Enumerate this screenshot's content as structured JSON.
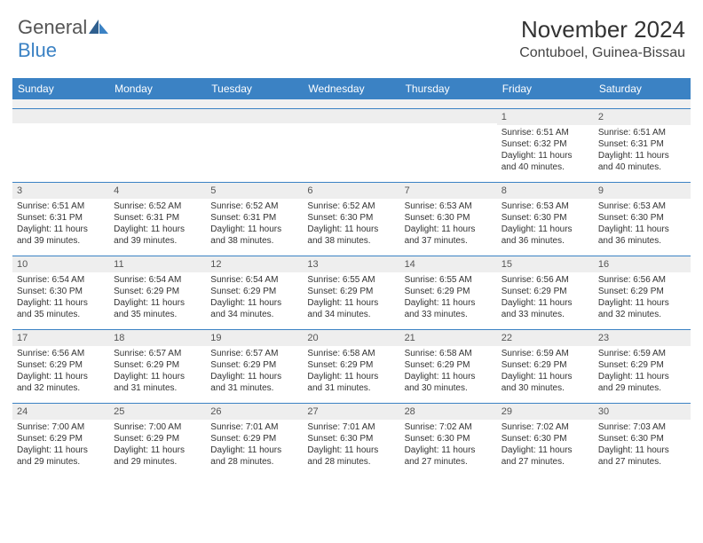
{
  "logo": {
    "text_gray": "General",
    "text_blue": "Blue"
  },
  "header": {
    "title": "November 2024",
    "location": "Contuboel, Guinea-Bissau"
  },
  "colors": {
    "accent": "#3b82c4",
    "dow_bg": "#3b82c4",
    "dow_text": "#ffffff",
    "daynum_bg": "#eeeeee",
    "border": "#3b82c4",
    "body_text": "#333333",
    "title_text": "#333333"
  },
  "days_of_week": [
    "Sunday",
    "Monday",
    "Tuesday",
    "Wednesday",
    "Thursday",
    "Friday",
    "Saturday"
  ],
  "weeks": [
    [
      null,
      null,
      null,
      null,
      null,
      {
        "n": "1",
        "sunrise": "Sunrise: 6:51 AM",
        "sunset": "Sunset: 6:32 PM",
        "daylight": "Daylight: 11 hours and 40 minutes."
      },
      {
        "n": "2",
        "sunrise": "Sunrise: 6:51 AM",
        "sunset": "Sunset: 6:31 PM",
        "daylight": "Daylight: 11 hours and 40 minutes."
      }
    ],
    [
      {
        "n": "3",
        "sunrise": "Sunrise: 6:51 AM",
        "sunset": "Sunset: 6:31 PM",
        "daylight": "Daylight: 11 hours and 39 minutes."
      },
      {
        "n": "4",
        "sunrise": "Sunrise: 6:52 AM",
        "sunset": "Sunset: 6:31 PM",
        "daylight": "Daylight: 11 hours and 39 minutes."
      },
      {
        "n": "5",
        "sunrise": "Sunrise: 6:52 AM",
        "sunset": "Sunset: 6:31 PM",
        "daylight": "Daylight: 11 hours and 38 minutes."
      },
      {
        "n": "6",
        "sunrise": "Sunrise: 6:52 AM",
        "sunset": "Sunset: 6:30 PM",
        "daylight": "Daylight: 11 hours and 38 minutes."
      },
      {
        "n": "7",
        "sunrise": "Sunrise: 6:53 AM",
        "sunset": "Sunset: 6:30 PM",
        "daylight": "Daylight: 11 hours and 37 minutes."
      },
      {
        "n": "8",
        "sunrise": "Sunrise: 6:53 AM",
        "sunset": "Sunset: 6:30 PM",
        "daylight": "Daylight: 11 hours and 36 minutes."
      },
      {
        "n": "9",
        "sunrise": "Sunrise: 6:53 AM",
        "sunset": "Sunset: 6:30 PM",
        "daylight": "Daylight: 11 hours and 36 minutes."
      }
    ],
    [
      {
        "n": "10",
        "sunrise": "Sunrise: 6:54 AM",
        "sunset": "Sunset: 6:30 PM",
        "daylight": "Daylight: 11 hours and 35 minutes."
      },
      {
        "n": "11",
        "sunrise": "Sunrise: 6:54 AM",
        "sunset": "Sunset: 6:29 PM",
        "daylight": "Daylight: 11 hours and 35 minutes."
      },
      {
        "n": "12",
        "sunrise": "Sunrise: 6:54 AM",
        "sunset": "Sunset: 6:29 PM",
        "daylight": "Daylight: 11 hours and 34 minutes."
      },
      {
        "n": "13",
        "sunrise": "Sunrise: 6:55 AM",
        "sunset": "Sunset: 6:29 PM",
        "daylight": "Daylight: 11 hours and 34 minutes."
      },
      {
        "n": "14",
        "sunrise": "Sunrise: 6:55 AM",
        "sunset": "Sunset: 6:29 PM",
        "daylight": "Daylight: 11 hours and 33 minutes."
      },
      {
        "n": "15",
        "sunrise": "Sunrise: 6:56 AM",
        "sunset": "Sunset: 6:29 PM",
        "daylight": "Daylight: 11 hours and 33 minutes."
      },
      {
        "n": "16",
        "sunrise": "Sunrise: 6:56 AM",
        "sunset": "Sunset: 6:29 PM",
        "daylight": "Daylight: 11 hours and 32 minutes."
      }
    ],
    [
      {
        "n": "17",
        "sunrise": "Sunrise: 6:56 AM",
        "sunset": "Sunset: 6:29 PM",
        "daylight": "Daylight: 11 hours and 32 minutes."
      },
      {
        "n": "18",
        "sunrise": "Sunrise: 6:57 AM",
        "sunset": "Sunset: 6:29 PM",
        "daylight": "Daylight: 11 hours and 31 minutes."
      },
      {
        "n": "19",
        "sunrise": "Sunrise: 6:57 AM",
        "sunset": "Sunset: 6:29 PM",
        "daylight": "Daylight: 11 hours and 31 minutes."
      },
      {
        "n": "20",
        "sunrise": "Sunrise: 6:58 AM",
        "sunset": "Sunset: 6:29 PM",
        "daylight": "Daylight: 11 hours and 31 minutes."
      },
      {
        "n": "21",
        "sunrise": "Sunrise: 6:58 AM",
        "sunset": "Sunset: 6:29 PM",
        "daylight": "Daylight: 11 hours and 30 minutes."
      },
      {
        "n": "22",
        "sunrise": "Sunrise: 6:59 AM",
        "sunset": "Sunset: 6:29 PM",
        "daylight": "Daylight: 11 hours and 30 minutes."
      },
      {
        "n": "23",
        "sunrise": "Sunrise: 6:59 AM",
        "sunset": "Sunset: 6:29 PM",
        "daylight": "Daylight: 11 hours and 29 minutes."
      }
    ],
    [
      {
        "n": "24",
        "sunrise": "Sunrise: 7:00 AM",
        "sunset": "Sunset: 6:29 PM",
        "daylight": "Daylight: 11 hours and 29 minutes."
      },
      {
        "n": "25",
        "sunrise": "Sunrise: 7:00 AM",
        "sunset": "Sunset: 6:29 PM",
        "daylight": "Daylight: 11 hours and 29 minutes."
      },
      {
        "n": "26",
        "sunrise": "Sunrise: 7:01 AM",
        "sunset": "Sunset: 6:29 PM",
        "daylight": "Daylight: 11 hours and 28 minutes."
      },
      {
        "n": "27",
        "sunrise": "Sunrise: 7:01 AM",
        "sunset": "Sunset: 6:30 PM",
        "daylight": "Daylight: 11 hours and 28 minutes."
      },
      {
        "n": "28",
        "sunrise": "Sunrise: 7:02 AM",
        "sunset": "Sunset: 6:30 PM",
        "daylight": "Daylight: 11 hours and 27 minutes."
      },
      {
        "n": "29",
        "sunrise": "Sunrise: 7:02 AM",
        "sunset": "Sunset: 6:30 PM",
        "daylight": "Daylight: 11 hours and 27 minutes."
      },
      {
        "n": "30",
        "sunrise": "Sunrise: 7:03 AM",
        "sunset": "Sunset: 6:30 PM",
        "daylight": "Daylight: 11 hours and 27 minutes."
      }
    ]
  ]
}
